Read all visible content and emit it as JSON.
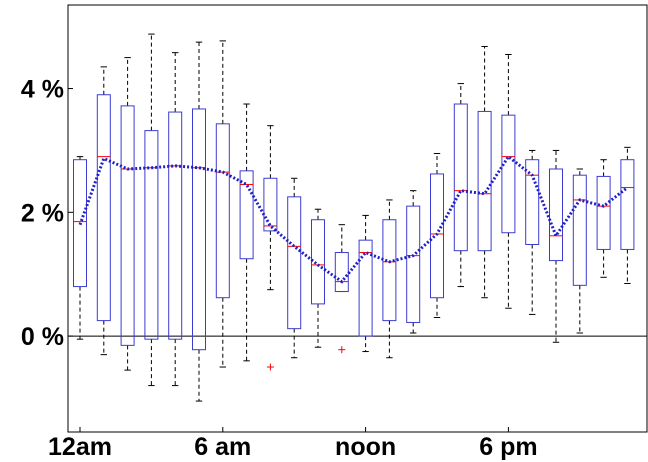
{
  "chart_data": {
    "type": "box",
    "title": "",
    "xlabel": "",
    "ylabel": "",
    "y_unit": "%",
    "ylim": [
      -1.55,
      5.35
    ],
    "xlim": [
      0,
      24
    ],
    "x_ticks": [
      {
        "x": 0,
        "label": "12am"
      },
      {
        "x": 6,
        "label": "6 am"
      },
      {
        "x": 12,
        "label": "noon"
      },
      {
        "x": 18,
        "label": "6 pm"
      }
    ],
    "y_ticks": [
      {
        "y": 0,
        "label": "0 %"
      },
      {
        "y": 2,
        "label": "2 %"
      },
      {
        "y": 4,
        "label": "4 %"
      }
    ],
    "zero_line": true,
    "grid": false,
    "colors": {
      "box": "#3c3cd2",
      "whisker": "#000000",
      "median": "#ff0000",
      "mean_line": "#2020c8",
      "outlier": "#ff0000"
    },
    "mean_series": [
      1.8,
      2.87,
      2.7,
      2.72,
      2.75,
      2.72,
      2.65,
      2.45,
      1.78,
      1.45,
      1.15,
      0.88,
      1.35,
      1.2,
      1.3,
      1.65,
      2.35,
      2.3,
      2.9,
      2.6,
      1.62,
      2.2,
      2.1,
      2.4
    ],
    "boxes": [
      {
        "x": 0,
        "q1": 0.8,
        "median": 1.85,
        "q3": 2.85,
        "whisker_low": -0.05,
        "whisker_high": 2.9,
        "outliers": []
      },
      {
        "x": 1,
        "q1": 0.25,
        "median": 2.9,
        "q3": 3.9,
        "whisker_low": -0.3,
        "whisker_high": 4.35,
        "outliers": []
      },
      {
        "x": 2,
        "q1": -0.15,
        "median": 2.7,
        "q3": 3.72,
        "whisker_low": -0.55,
        "whisker_high": 4.5,
        "outliers": []
      },
      {
        "x": 3,
        "q1": -0.05,
        "median": 2.72,
        "q3": 3.32,
        "whisker_low": -0.8,
        "whisker_high": 4.88,
        "outliers": []
      },
      {
        "x": 4,
        "q1": -0.05,
        "median": 2.75,
        "q3": 3.62,
        "whisker_low": -0.8,
        "whisker_high": 4.58,
        "outliers": []
      },
      {
        "x": 5,
        "q1": -0.22,
        "median": 2.72,
        "q3": 3.67,
        "whisker_low": -1.05,
        "whisker_high": 4.75,
        "outliers": []
      },
      {
        "x": 6,
        "q1": 0.62,
        "median": 2.65,
        "q3": 3.43,
        "whisker_low": -0.5,
        "whisker_high": 4.77,
        "outliers": []
      },
      {
        "x": 7,
        "q1": 1.25,
        "median": 2.45,
        "q3": 2.67,
        "whisker_low": -0.4,
        "whisker_high": 3.75,
        "outliers": []
      },
      {
        "x": 8,
        "q1": 1.7,
        "median": 1.78,
        "q3": 2.55,
        "whisker_low": 0.75,
        "whisker_high": 3.4,
        "outliers": [
          -0.5
        ]
      },
      {
        "x": 9,
        "q1": 0.12,
        "median": 1.45,
        "q3": 2.25,
        "whisker_low": -0.35,
        "whisker_high": 2.55,
        "outliers": []
      },
      {
        "x": 10,
        "q1": 0.52,
        "median": 1.15,
        "q3": 1.88,
        "whisker_low": -0.18,
        "whisker_high": 2.05,
        "outliers": []
      },
      {
        "x": 11,
        "q1": 0.72,
        "median": 0.88,
        "q3": 1.35,
        "whisker_low": 0.72,
        "whisker_high": 1.8,
        "outliers": [
          -0.22
        ]
      },
      {
        "x": 12,
        "q1": 0.0,
        "median": 1.35,
        "q3": 1.55,
        "whisker_low": -0.25,
        "whisker_high": 1.95,
        "outliers": []
      },
      {
        "x": 13,
        "q1": 0.25,
        "median": 1.2,
        "q3": 1.88,
        "whisker_low": -0.35,
        "whisker_high": 2.2,
        "outliers": []
      },
      {
        "x": 14,
        "q1": 0.22,
        "median": 1.3,
        "q3": 2.1,
        "whisker_low": 0.05,
        "whisker_high": 2.35,
        "outliers": []
      },
      {
        "x": 15,
        "q1": 0.62,
        "median": 1.65,
        "q3": 2.62,
        "whisker_low": 0.3,
        "whisker_high": 2.95,
        "outliers": []
      },
      {
        "x": 16,
        "q1": 1.38,
        "median": 2.35,
        "q3": 3.75,
        "whisker_low": 0.8,
        "whisker_high": 4.08,
        "outliers": []
      },
      {
        "x": 17,
        "q1": 1.38,
        "median": 2.3,
        "q3": 3.63,
        "whisker_low": 0.62,
        "whisker_high": 4.68,
        "outliers": []
      },
      {
        "x": 18,
        "q1": 1.67,
        "median": 2.9,
        "q3": 3.57,
        "whisker_low": 0.45,
        "whisker_high": 4.55,
        "outliers": []
      },
      {
        "x": 19,
        "q1": 1.48,
        "median": 2.6,
        "q3": 2.85,
        "whisker_low": 0.35,
        "whisker_high": 3.0,
        "outliers": []
      },
      {
        "x": 20,
        "q1": 1.22,
        "median": 1.62,
        "q3": 2.7,
        "whisker_low": -0.1,
        "whisker_high": 3.0,
        "outliers": []
      },
      {
        "x": 21,
        "q1": 0.82,
        "median": 2.2,
        "q3": 2.6,
        "whisker_low": 0.05,
        "whisker_high": 2.7,
        "outliers": []
      },
      {
        "x": 22,
        "q1": 1.4,
        "median": 2.1,
        "q3": 2.58,
        "whisker_low": 0.95,
        "whisker_high": 2.85,
        "outliers": []
      },
      {
        "x": 23,
        "q1": 1.4,
        "median": 2.4,
        "q3": 2.85,
        "whisker_low": 0.85,
        "whisker_high": 3.05,
        "outliers": []
      }
    ]
  }
}
